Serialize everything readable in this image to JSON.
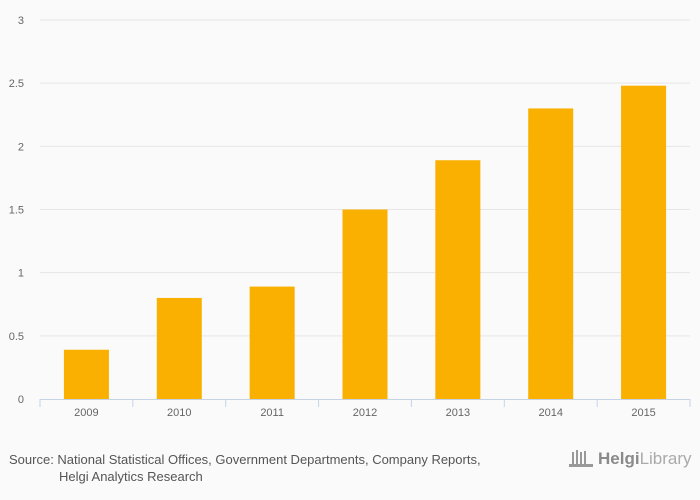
{
  "chart_data": {
    "type": "bar",
    "categories": [
      "2009",
      "2010",
      "2011",
      "2012",
      "2013",
      "2014",
      "2015"
    ],
    "values": [
      0.39,
      0.8,
      0.89,
      1.5,
      1.89,
      2.3,
      2.48
    ],
    "ylim": [
      0,
      3
    ],
    "yticks": [
      "0",
      "0.5",
      "1",
      "1.5",
      "2",
      "2.5",
      "3"
    ],
    "title": "",
    "xlabel": "",
    "ylabel": "",
    "grid": true,
    "bar_color": "#f9b000"
  },
  "source": {
    "line1": "Source: National Statistical Offices, Government Departments, Company Reports,",
    "line2": "Helgi Analytics Research"
  },
  "logo": {
    "text1": "Helgi",
    "text2": "Library"
  }
}
